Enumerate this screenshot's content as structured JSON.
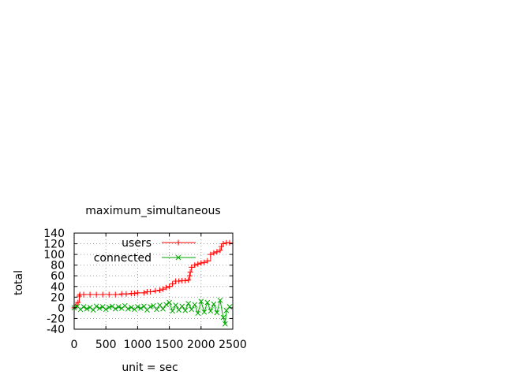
{
  "chart_data": {
    "type": "line",
    "title": "maximum_simultaneous",
    "xlabel": "unit = sec",
    "ylabel": "total",
    "xlim": [
      0,
      2500
    ],
    "ylim": [
      -40,
      140
    ],
    "x_ticks": [
      0,
      500,
      1000,
      1500,
      2000,
      2500
    ],
    "y_ticks": [
      -40,
      -20,
      0,
      20,
      40,
      60,
      80,
      100,
      120,
      140
    ],
    "grid": true,
    "legend_position": "top-right",
    "series": [
      {
        "name": "users",
        "color": "#ff0000",
        "marker": "plus",
        "x": [
          0,
          30,
          60,
          80,
          90,
          150,
          250,
          350,
          450,
          550,
          650,
          750,
          820,
          900,
          950,
          1000,
          1100,
          1150,
          1200,
          1280,
          1350,
          1400,
          1450,
          1500,
          1550,
          1600,
          1650,
          1700,
          1750,
          1800,
          1820,
          1830,
          1850,
          1900,
          1950,
          2000,
          2050,
          2100,
          2150,
          2200,
          2250,
          2300,
          2320,
          2350,
          2400,
          2450
        ],
        "y": [
          0,
          5,
          10,
          22,
          25,
          25,
          25,
          25,
          25,
          25,
          25,
          26,
          26,
          27,
          27,
          28,
          28,
          30,
          30,
          32,
          33,
          35,
          38,
          40,
          45,
          50,
          50,
          51,
          51,
          52,
          60,
          67,
          76,
          80,
          82,
          84,
          85,
          88,
          100,
          103,
          105,
          108,
          115,
          120,
          122,
          122
        ]
      },
      {
        "name": "connected",
        "color": "#00aa00",
        "marker": "x",
        "x": [
          0,
          50,
          100,
          150,
          200,
          250,
          300,
          350,
          400,
          450,
          500,
          550,
          600,
          650,
          700,
          750,
          800,
          850,
          900,
          950,
          1000,
          1050,
          1100,
          1150,
          1200,
          1250,
          1300,
          1350,
          1400,
          1450,
          1500,
          1550,
          1600,
          1650,
          1700,
          1750,
          1800,
          1850,
          1900,
          1950,
          2000,
          2050,
          2100,
          2150,
          2200,
          2250,
          2300,
          2350,
          2380,
          2400,
          2450
        ],
        "y": [
          0,
          3,
          -3,
          2,
          -2,
          1,
          -4,
          3,
          -1,
          2,
          -3,
          1,
          3,
          -2,
          2,
          -1,
          4,
          -2,
          1,
          -3,
          2,
          -1,
          3,
          -4,
          2,
          4,
          -3,
          5,
          -2,
          6,
          10,
          -6,
          5,
          -4,
          3,
          -5,
          8,
          -3,
          6,
          -10,
          12,
          -8,
          10,
          -6,
          7,
          -9,
          14,
          -18,
          -30,
          -5,
          2
        ]
      }
    ]
  }
}
